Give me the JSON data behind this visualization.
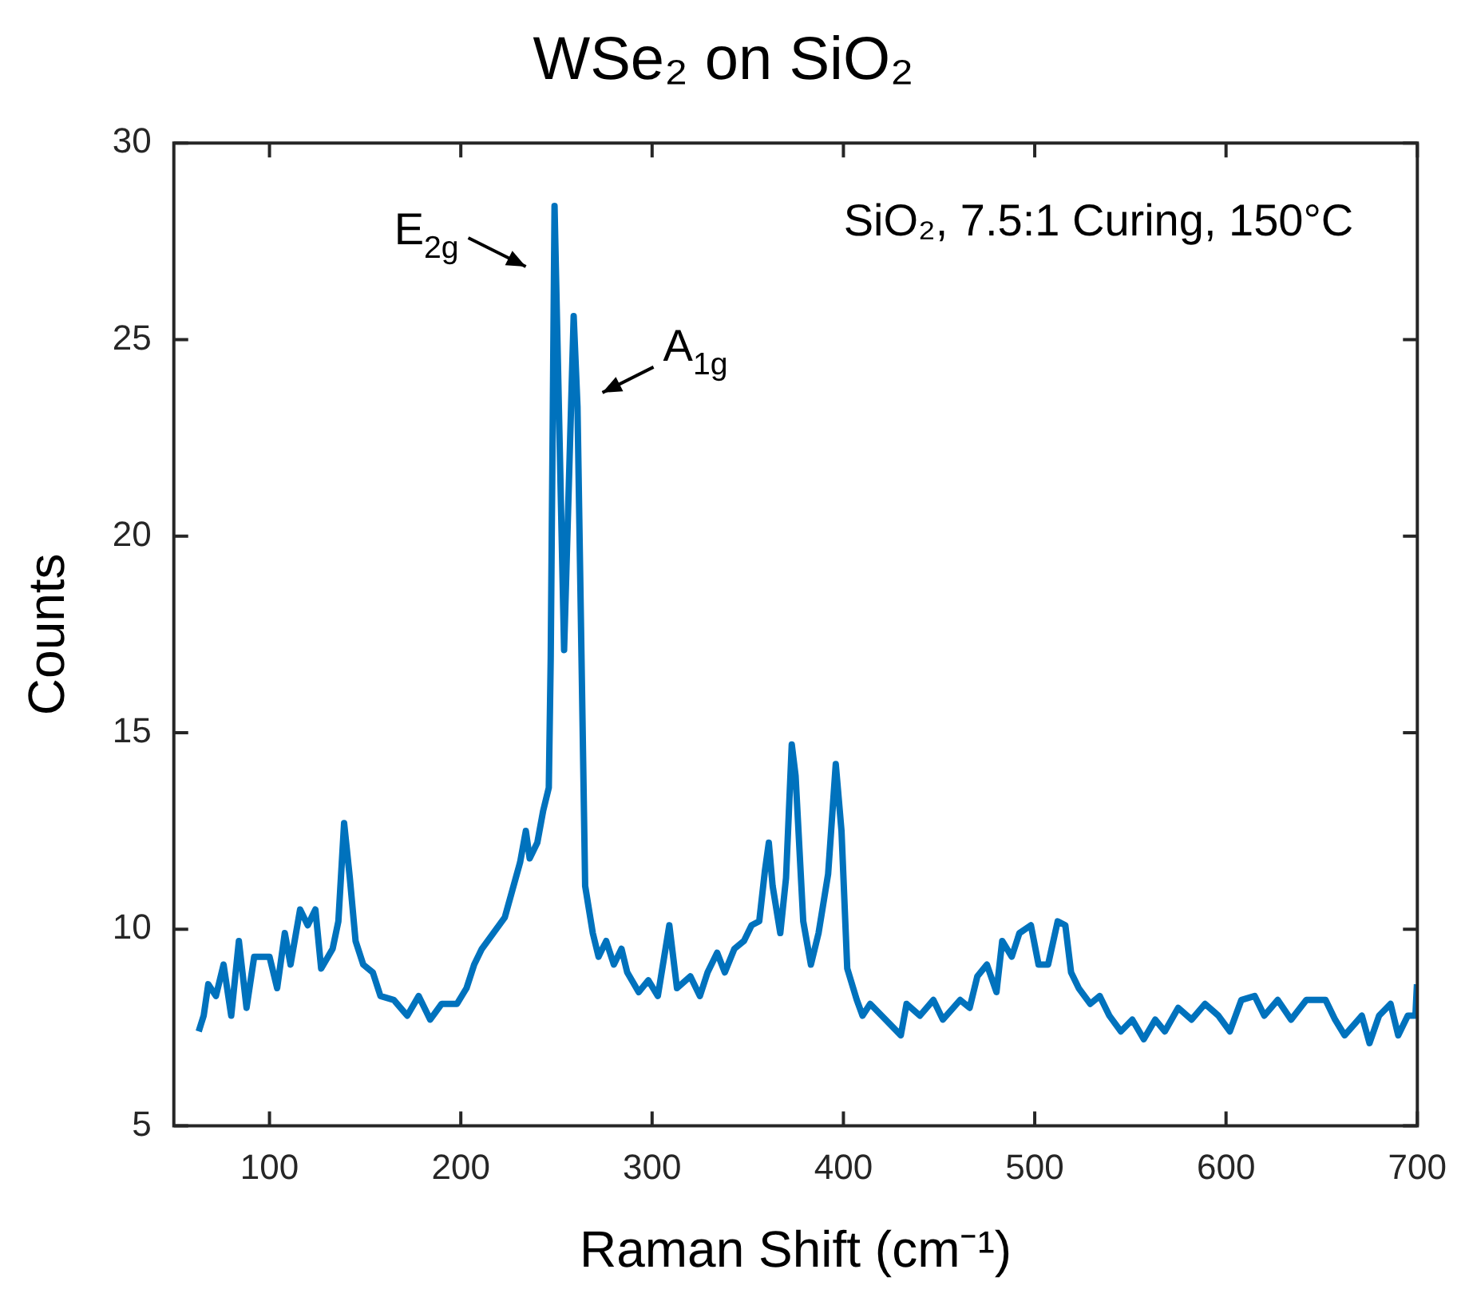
{
  "chart_data": {
    "type": "line",
    "title": "WSe₂ on SiO₂",
    "xlabel": "Raman Shift (cm⁻¹)",
    "ylabel": "Counts",
    "xlim": [
      50,
      700
    ],
    "xticks": [
      100,
      200,
      300,
      400,
      500,
      600,
      700
    ],
    "ylim": [
      5,
      30
    ],
    "yticks": [
      5,
      10,
      15,
      20,
      25,
      30
    ],
    "annotations": [
      {
        "text": "E$_{2g}$",
        "x": 249,
        "y": 28.4
      },
      {
        "text": "A$_{1g}$",
        "x": 259,
        "y": 25.6
      },
      "SiO₂, 7.5:1 Curing, 150°C"
    ],
    "series": [
      {
        "color": "#0072bd",
        "x": [
          63,
          65.6,
          68,
          72,
          76,
          80,
          84,
          88,
          92,
          97,
          100,
          104,
          108,
          111,
          116,
          120,
          124,
          127,
          133,
          136,
          139,
          142,
          145,
          149,
          154,
          158,
          165,
          172,
          178,
          184,
          190,
          198,
          203,
          207,
          211,
          217,
          223,
          227,
          231,
          234,
          236,
          240,
          243,
          246,
          247,
          249,
          254,
          259,
          261,
          265,
          269,
          272,
          276,
          280,
          284,
          287,
          293,
          298,
          303,
          309,
          313,
          320,
          325,
          329,
          334,
          338,
          343,
          348,
          352,
          356,
          359,
          361,
          363,
          367,
          370,
          373,
          375,
          379,
          383,
          387,
          392,
          396,
          399,
          402,
          407,
          410,
          414,
          420,
          430,
          433,
          440,
          447,
          452,
          461,
          466,
          470,
          475,
          480,
          483,
          488,
          492,
          498,
          502,
          507,
          512,
          516,
          519,
          523,
          529,
          534,
          539,
          545,
          551,
          557,
          563,
          568,
          575,
          582,
          589,
          596,
          602,
          608,
          615,
          620,
          627,
          634,
          642,
          652,
          657,
          662,
          671,
          675,
          680,
          686,
          690,
          695,
          699,
          699.8
        ],
        "values": [
          7.4,
          7.8,
          8.6,
          8.3,
          9.1,
          7.8,
          9.7,
          8.0,
          9.3,
          9.3,
          9.3,
          8.5,
          9.9,
          9.1,
          10.5,
          10.1,
          10.5,
          9.0,
          9.5,
          10.2,
          12.7,
          11.3,
          9.7,
          9.1,
          8.9,
          8.3,
          8.2,
          7.8,
          8.3,
          7.7,
          8.1,
          8.1,
          8.5,
          9.1,
          9.5,
          9.9,
          10.3,
          11.0,
          11.7,
          12.5,
          11.8,
          12.2,
          13.0,
          13.6,
          16.9,
          28.4,
          17.1,
          25.6,
          23.3,
          11.1,
          9.9,
          9.3,
          9.7,
          9.1,
          9.5,
          8.9,
          8.4,
          8.7,
          8.3,
          10.1,
          8.5,
          8.8,
          8.3,
          8.9,
          9.4,
          8.9,
          9.5,
          9.7,
          10.1,
          10.2,
          11.5,
          12.2,
          11.1,
          9.9,
          11.3,
          14.7,
          13.9,
          10.2,
          9.1,
          9.9,
          11.4,
          14.2,
          12.5,
          9.0,
          8.2,
          7.8,
          8.1,
          7.8,
          7.3,
          8.1,
          7.8,
          8.2,
          7.7,
          8.2,
          8.0,
          8.8,
          9.1,
          8.4,
          9.7,
          9.3,
          9.9,
          10.1,
          9.1,
          9.1,
          10.2,
          10.1,
          8.9,
          8.5,
          8.1,
          8.3,
          7.8,
          7.4,
          7.7,
          7.2,
          7.7,
          7.4,
          8.0,
          7.7,
          8.1,
          7.8,
          7.4,
          8.2,
          8.3,
          7.8,
          8.2,
          7.7,
          8.2,
          8.2,
          7.7,
          7.3,
          7.8,
          7.1,
          7.8,
          8.1,
          7.3,
          7.8,
          7.8,
          8.6
        ]
      }
    ]
  }
}
